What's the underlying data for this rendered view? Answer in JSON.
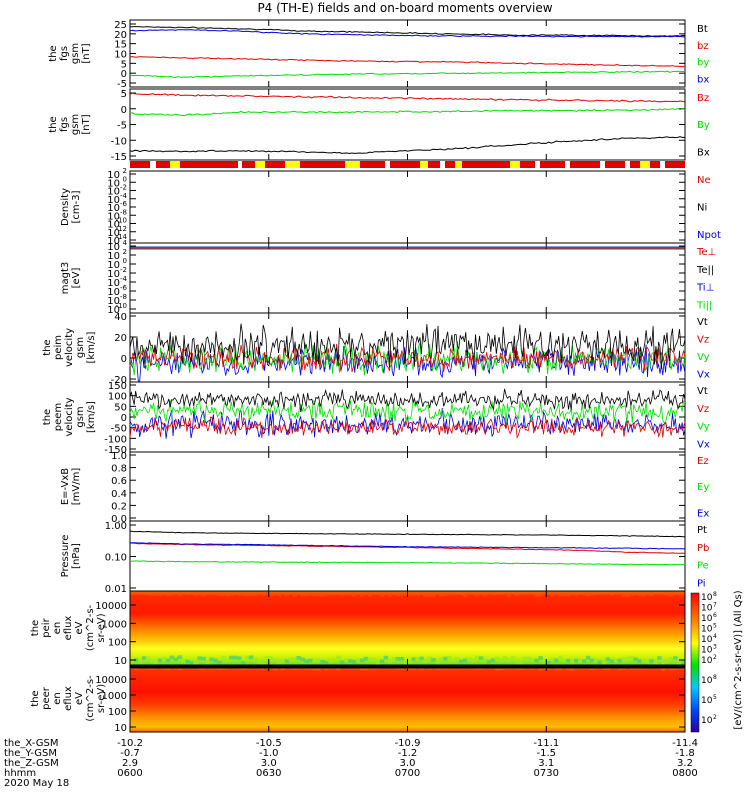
{
  "title": "P4 (TH-E) fields and on-board moments overview",
  "colors": {
    "black": "#000000",
    "red": "#e00000",
    "green": "#00dd00",
    "blue": "#0000dd",
    "yellow": "#ffff00"
  },
  "ticks_x": {
    "rows": [
      {
        "label": "the_X-GSM",
        "values": [
          "-10.2",
          "-10.5",
          "-10.9",
          "-11.1",
          "-11.4"
        ]
      },
      {
        "label": "the_Y-GSM",
        "values": [
          "-0.7",
          "-1.0",
          "-1.2",
          "-1.5",
          "-1.8"
        ]
      },
      {
        "label": "the_Z-GSM",
        "values": [
          "2.9",
          "3.0",
          "3.0",
          "3.1",
          "3.2"
        ]
      },
      {
        "label": "hhmm",
        "values": [
          "0600",
          "0630",
          "0700",
          "0730",
          "0800"
        ]
      }
    ],
    "date": "2020 May 18"
  },
  "colorbar": {
    "label": "[eV/(cm^2-s-sr-eV)] (All Qs)",
    "ticks_top": [
      "10",
      "10",
      "10",
      "10",
      "10",
      "10",
      "10"
    ],
    "ticks_bottom": [
      "10",
      "10",
      "10"
    ],
    "sup_top": [
      "8",
      "7",
      "6",
      "5",
      "4",
      "3",
      "2"
    ],
    "sup_bottom": [
      "8",
      "5",
      "2"
    ]
  },
  "chart_data": [
    {
      "type": "line",
      "ylabel": [
        "the",
        "fgs",
        "gsm",
        "[nT]"
      ],
      "yticks": [
        "25",
        "20",
        "15",
        "10",
        "5",
        "0",
        "-5"
      ],
      "ylim": [
        -5,
        26
      ],
      "series": [
        {
          "name": "Bt",
          "color": "#000000",
          "values": [
            23,
            22.5,
            22,
            21,
            20.5,
            20,
            19.5,
            19,
            19,
            18.7,
            18.6
          ]
        },
        {
          "name": "bz",
          "color": "#e00000",
          "values": [
            9,
            8.5,
            8,
            7.5,
            7,
            6.8,
            6.5,
            6,
            5.5,
            5,
            4.6
          ]
        },
        {
          "name": "by",
          "color": "#00dd00",
          "values": [
            0.5,
            -0.5,
            0.2,
            0.5,
            1,
            1.2,
            1.4,
            1.6,
            1.8,
            2,
            2.2
          ]
        },
        {
          "name": "bx",
          "color": "#0000dd",
          "values": [
            21,
            21.5,
            20.8,
            19.7,
            19.2,
            18.8,
            18.6,
            18.5,
            18.4,
            18.3,
            18.2
          ]
        }
      ]
    },
    {
      "type": "line",
      "ylabel": [
        "the",
        "fgs",
        "gsm",
        "[nT]"
      ],
      "yticks": [
        "5",
        "0",
        "-5",
        "-10",
        "-15"
      ],
      "ylim": [
        -17,
        6
      ],
      "series": [
        {
          "name": "Bz",
          "color": "#e00000",
          "values": [
            4.5,
            4,
            3.8,
            3.5,
            3.2,
            3,
            2.8,
            2.5,
            2.3,
            2.1,
            2
          ]
        },
        {
          "name": "By",
          "color": "#00dd00",
          "values": [
            -2,
            -2.5,
            -1.5,
            -1.5,
            -1.5,
            -1.3,
            -1.2,
            -1,
            -1,
            -0.8,
            -0.5
          ]
        },
        {
          "name": "Bx",
          "color": "#000000",
          "values": [
            -14,
            -14.2,
            -14,
            -14.3,
            -14.8,
            -14,
            -13.2,
            -12,
            -10.8,
            -10,
            -9.5
          ]
        }
      ]
    },
    {
      "type": "line",
      "ylabel": [
        "Density",
        "[cm-3]"
      ],
      "yticks": [
        "10",
        "10",
        "10",
        "10",
        "10",
        "10",
        "10",
        "10",
        "10"
      ],
      "ysup": [
        "2",
        "0",
        "-2",
        "-4",
        "-6",
        "-8",
        "-10",
        "-12",
        "-14"
      ],
      "series": [
        {
          "name": "Ne",
          "color": "#e00000"
        },
        {
          "name": "Ni",
          "color": "#000000"
        },
        {
          "name": "Npot",
          "color": "#0000dd"
        }
      ]
    },
    {
      "type": "line",
      "ylabel": [
        "magt3",
        "[eV]"
      ],
      "yticks": [
        "10",
        "10",
        "10",
        "10",
        "10",
        "10",
        "10",
        "10"
      ],
      "ysup": [
        "4",
        "2",
        "0",
        "-2",
        "-4",
        "-6",
        "-8",
        "-10"
      ],
      "series": [
        {
          "name": "Te⊥",
          "color": "#e00000"
        },
        {
          "name": "Te||",
          "color": "#000000"
        },
        {
          "name": "Ti⊥",
          "color": "#0000dd"
        },
        {
          "name": "Ti||",
          "color": "#00dd00"
        }
      ]
    },
    {
      "type": "line",
      "ylabel": [
        "the",
        "peim",
        "velocity",
        "gsm",
        "[km/s]"
      ],
      "yticks": [
        "40",
        "20",
        "0",
        "-20"
      ],
      "ylim": [
        -20,
        40
      ],
      "series": [
        {
          "name": "Vt",
          "color": "#000000"
        },
        {
          "name": "Vz",
          "color": "#e00000"
        },
        {
          "name": "Vy",
          "color": "#00dd00"
        },
        {
          "name": "Vx",
          "color": "#0000dd"
        }
      ]
    },
    {
      "type": "line",
      "ylabel": [
        "the",
        "peem",
        "velocity",
        "gsm",
        "[km/s]"
      ],
      "yticks": [
        "150",
        "100",
        "50",
        "0",
        "-50",
        "-100",
        "-150"
      ],
      "ylim": [
        -150,
        150
      ],
      "series": [
        {
          "name": "Vt",
          "color": "#000000"
        },
        {
          "name": "Vz",
          "color": "#e00000"
        },
        {
          "name": "Vy",
          "color": "#00dd00"
        },
        {
          "name": "Vx",
          "color": "#0000dd"
        }
      ]
    },
    {
      "type": "line",
      "ylabel": [
        "E=-VxB",
        "[mV/m]"
      ],
      "yticks": [
        "1.0",
        "0.8",
        "0.6",
        "0.4",
        "0.2",
        "0.0"
      ],
      "ylim": [
        0,
        1
      ],
      "series": [
        {
          "name": "Ez",
          "color": "#e00000"
        },
        {
          "name": "Ey",
          "color": "#00dd00"
        },
        {
          "name": "Ex",
          "color": "#0000dd"
        }
      ]
    },
    {
      "type": "line",
      "ylabel": [
        "Pressure",
        "[nPa]"
      ],
      "yticks": [
        "1.00",
        "0.10",
        "0.01"
      ],
      "series": [
        {
          "name": "Pt",
          "color": "#000000",
          "values": [
            0.55,
            0.5,
            0.48,
            0.47,
            0.46,
            0.45,
            0.44,
            0.43,
            0.42,
            0.4,
            0.38
          ]
        },
        {
          "name": "Pb",
          "color": "#e00000",
          "values": [
            0.24,
            0.22,
            0.21,
            0.2,
            0.19,
            0.18,
            0.17,
            0.16,
            0.15,
            0.13,
            0.12
          ]
        },
        {
          "name": "Pe",
          "color": "#00dd00",
          "values": [
            0.07,
            0.068,
            0.066,
            0.065,
            0.064,
            0.063,
            0.062,
            0.06,
            0.058,
            0.056,
            0.055
          ]
        },
        {
          "name": "Pi",
          "color": "#0000dd",
          "values": [
            0.25,
            0.23,
            0.22,
            0.21,
            0.2,
            0.19,
            0.185,
            0.18,
            0.175,
            0.17,
            0.165
          ]
        }
      ]
    },
    {
      "type": "heatmap",
      "ylabel": [
        "the",
        "peir",
        "en",
        "eflux",
        "eV",
        "(cm^2-s-",
        "sr-eV)"
      ],
      "yticks": [
        "10000",
        "1000",
        "100",
        "10"
      ]
    },
    {
      "type": "heatmap",
      "ylabel": [
        "the",
        "peer",
        "en",
        "eflux",
        "eV",
        "(cm^2-s-",
        "sr-eV)"
      ],
      "yticks": [
        "10000",
        "1000",
        "100",
        "10"
      ]
    }
  ]
}
